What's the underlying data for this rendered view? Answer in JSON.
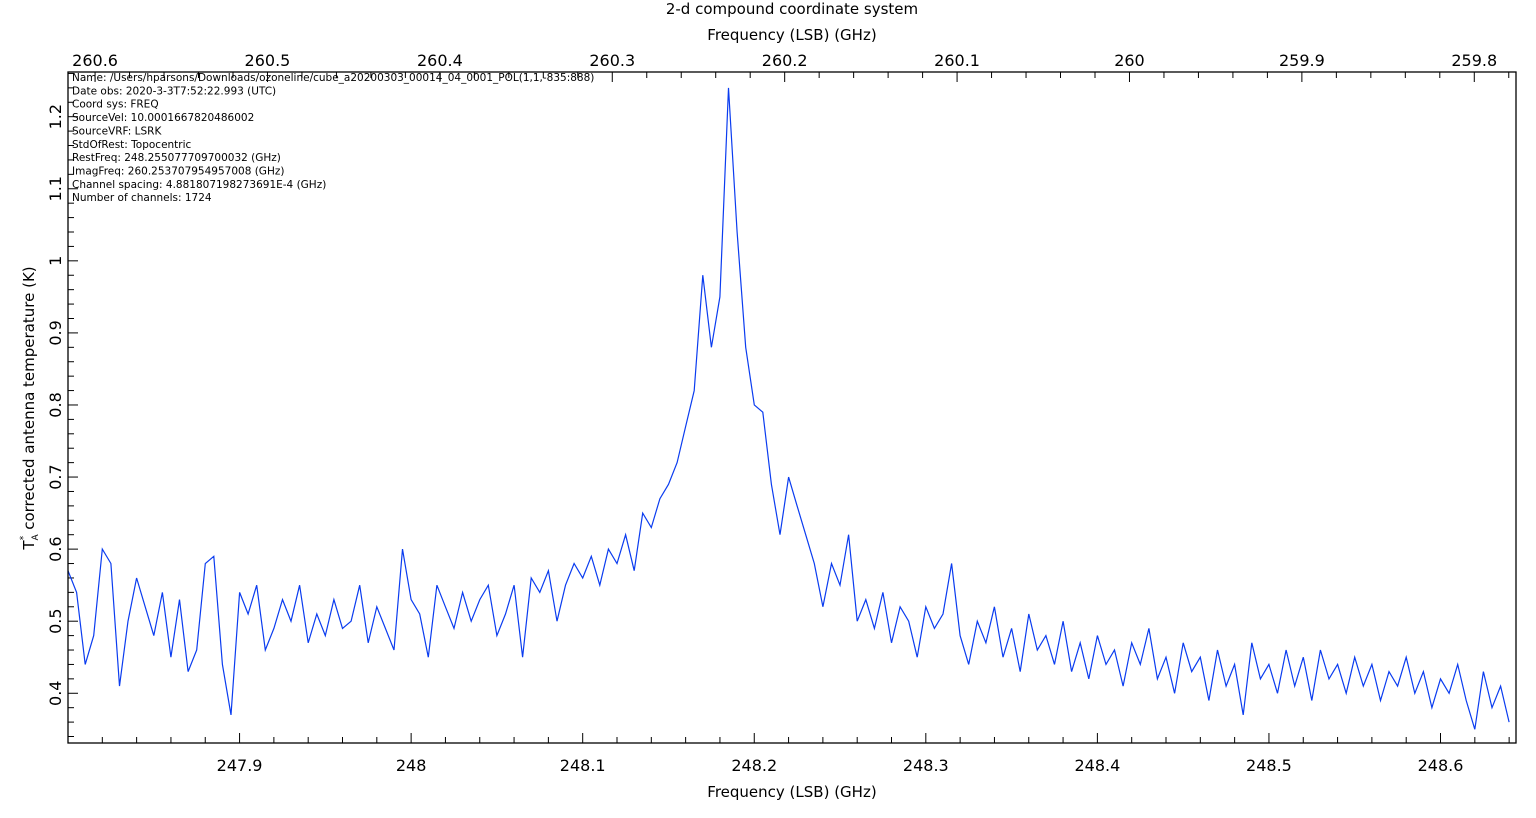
{
  "chart_data": {
    "type": "line",
    "title": "2-d compound coordinate system",
    "xlabel": "Frequency (LSB) (GHz)",
    "x2label": "Frequency (LSB) (GHz)",
    "ylabel_symbol": "T",
    "ylabel_subscript": "A",
    "ylabel_superscript": "*",
    "ylabel": "corrected antenna temperature (K)",
    "xlim": [
      247.8,
      248.644
    ],
    "x2lim": [
      260.6157,
      259.7758
    ],
    "ylim": [
      0.331,
      1.262
    ],
    "grid": false,
    "line_color": "#0a3cf0",
    "xticks": [
      247.9,
      248,
      248.1,
      248.2,
      248.3,
      248.4,
      248.5,
      248.6
    ],
    "xtick_labels": [
      "247.9",
      "248",
      "248.1",
      "248.2",
      "248.3",
      "248.4",
      "248.5",
      "248.6"
    ],
    "x2ticks": [
      260.6,
      260.5,
      260.4,
      260.3,
      260.2,
      260.1,
      260,
      259.9,
      259.8
    ],
    "x2tick_labels": [
      "260.6",
      "260.5",
      "260.4",
      "260.3",
      "260.2",
      "260.1",
      "260",
      "259.9",
      "259.8"
    ],
    "yticks": [
      0.4,
      0.5,
      0.6,
      0.7,
      0.8,
      0.9,
      1,
      1.1,
      1.2
    ],
    "ytick_labels": [
      "0.4",
      "0.5",
      "0.6",
      "0.7",
      "0.8",
      "0.9",
      "1",
      "1.1",
      "1.2"
    ],
    "x_start": 247.8,
    "x_step": 0.005,
    "values": [
      0.57,
      0.54,
      0.44,
      0.48,
      0.6,
      0.58,
      0.41,
      0.5,
      0.56,
      0.52,
      0.48,
      0.54,
      0.45,
      0.53,
      0.43,
      0.46,
      0.58,
      0.59,
      0.44,
      0.37,
      0.54,
      0.51,
      0.55,
      0.46,
      0.49,
      0.53,
      0.5,
      0.55,
      0.47,
      0.51,
      0.48,
      0.53,
      0.49,
      0.5,
      0.55,
      0.47,
      0.52,
      0.49,
      0.46,
      0.6,
      0.53,
      0.51,
      0.45,
      0.55,
      0.52,
      0.49,
      0.54,
      0.5,
      0.53,
      0.55,
      0.48,
      0.51,
      0.55,
      0.45,
      0.56,
      0.54,
      0.57,
      0.5,
      0.55,
      0.58,
      0.56,
      0.59,
      0.55,
      0.6,
      0.58,
      0.62,
      0.57,
      0.65,
      0.63,
      0.67,
      0.69,
      0.72,
      0.77,
      0.82,
      0.98,
      0.88,
      0.95,
      1.24,
      1.04,
      0.88,
      0.8,
      0.79,
      0.69,
      0.62,
      0.7,
      0.66,
      0.62,
      0.58,
      0.52,
      0.58,
      0.55,
      0.62,
      0.5,
      0.53,
      0.49,
      0.54,
      0.47,
      0.52,
      0.5,
      0.45,
      0.52,
      0.49,
      0.51,
      0.58,
      0.48,
      0.44,
      0.5,
      0.47,
      0.52,
      0.45,
      0.49,
      0.43,
      0.51,
      0.46,
      0.48,
      0.44,
      0.5,
      0.43,
      0.47,
      0.42,
      0.48,
      0.44,
      0.46,
      0.41,
      0.47,
      0.44,
      0.49,
      0.42,
      0.45,
      0.4,
      0.47,
      0.43,
      0.45,
      0.39,
      0.46,
      0.41,
      0.44,
      0.37,
      0.47,
      0.42,
      0.44,
      0.4,
      0.46,
      0.41,
      0.45,
      0.39,
      0.46,
      0.42,
      0.44,
      0.4,
      0.45,
      0.41,
      0.44,
      0.39,
      0.43,
      0.41,
      0.45,
      0.4,
      0.43,
      0.38,
      0.42,
      0.4,
      0.44,
      0.39,
      0.35,
      0.43,
      0.38,
      0.41,
      0.36
    ],
    "annotations": [
      "Name: /Users/hparsons/Downloads/ozoneline/cube_a20200303_00014_04_0001_POL(1,1,-835:888)",
      "Date obs: 2020-3-3T7:52:22.993 (UTC)",
      "Coord sys: FREQ",
      "SourceVel: 10.0001667820486002",
      "SourceVRF: LSRK",
      "StdOfRest: Topocentric",
      "RestFreq: 248.255077709700032 (GHz)",
      "ImagFreq: 260.253707954957008 (GHz)",
      "Channel spacing: 4.881807198273691E-4 (GHz)",
      "Number of channels: 1724"
    ]
  }
}
